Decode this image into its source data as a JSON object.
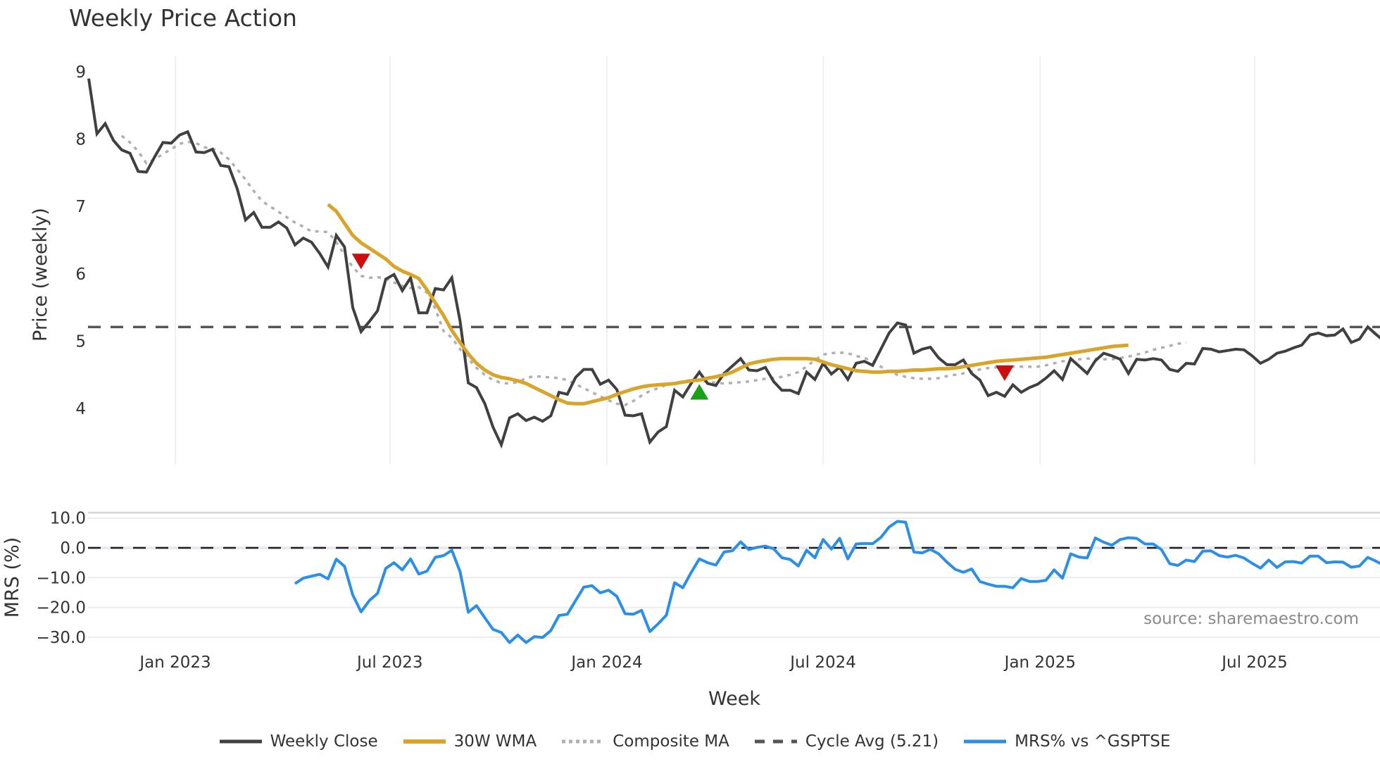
{
  "title": "Weekly Price Action",
  "x_axis_title": "Week",
  "source_label": "source: sharemaestro.com",
  "colors": {
    "close": "#404040",
    "wma": "#d8a42a",
    "composite": "#b0b0b0",
    "cycle": "#555555",
    "mrs": "#2b8fe8",
    "sell_marker": "#cc0e0e",
    "buy_marker": "#17a217",
    "grid": "#ececec"
  },
  "legend": [
    {
      "label": "Weekly Close",
      "key": "close",
      "style": "solid"
    },
    {
      "label": "30W WMA",
      "key": "wma",
      "style": "solid"
    },
    {
      "label": "Composite MA",
      "key": "composite",
      "style": "dotted"
    },
    {
      "label": "Cycle Avg (5.21)",
      "key": "cycle",
      "style": "dashed"
    },
    {
      "label": "MRS% vs ^GSPTSE",
      "key": "mrs",
      "style": "solid"
    }
  ],
  "chart_data": [
    {
      "type": "line",
      "title": "Weekly Price Action",
      "ylabel": "Price (weekly)",
      "xlabel": "Week",
      "ylim": [
        3.3,
        9.25
      ],
      "yticks": [
        4,
        5,
        6,
        7,
        8,
        9
      ],
      "x_tick_labels": [
        "Jan 2023",
        "Jul 2023",
        "Jan 2024",
        "Jul 2024",
        "Jan 2025",
        "Jul 2025"
      ],
      "x_tick_week_index": [
        10.5,
        36.5,
        62.8,
        89,
        115.3,
        141.3
      ],
      "grid": true,
      "cycle_avg": 5.21,
      "series": [
        {
          "name": "Weekly Close",
          "start_week": 0,
          "values": [
            8.9,
            8.08,
            8.23,
            7.98,
            7.84,
            7.79,
            7.52,
            7.51,
            7.74,
            7.95,
            7.94,
            8.06,
            8.11,
            7.81,
            7.8,
            7.85,
            7.61,
            7.59,
            7.26,
            6.8,
            6.91,
            6.69,
            6.69,
            6.77,
            6.68,
            6.43,
            6.53,
            6.47,
            6.3,
            6.1,
            6.57,
            6.4,
            5.5,
            5.14,
            5.29,
            5.45,
            5.92,
            5.99,
            5.75,
            5.94,
            5.42,
            5.42,
            5.78,
            5.76,
            5.94,
            5.3,
            4.38,
            4.31,
            4.07,
            3.72,
            3.46,
            3.86,
            3.92,
            3.82,
            3.87,
            3.81,
            3.89,
            4.24,
            4.21,
            4.46,
            4.58,
            4.58,
            4.36,
            4.42,
            4.28,
            3.9,
            3.89,
            3.92,
            3.5,
            3.65,
            3.73,
            4.27,
            4.17,
            4.37,
            4.54,
            4.37,
            4.34,
            4.52,
            4.63,
            4.74,
            4.57,
            4.56,
            4.61,
            4.4,
            4.27,
            4.27,
            4.22,
            4.54,
            4.43,
            4.67,
            4.51,
            4.61,
            4.43,
            4.67,
            4.7,
            4.64,
            4.88,
            5.12,
            5.27,
            5.24,
            4.82,
            4.88,
            4.91,
            4.75,
            4.65,
            4.65,
            4.72,
            4.52,
            4.42,
            4.19,
            4.24,
            4.18,
            4.35,
            4.24,
            4.31,
            4.36,
            4.45,
            4.56,
            4.43,
            4.74,
            4.63,
            4.52,
            4.71,
            4.82,
            4.78,
            4.73,
            4.52,
            4.73,
            4.72,
            4.74,
            4.72,
            4.58,
            4.55,
            4.67,
            4.66,
            4.89,
            4.88,
            4.84,
            4.86,
            4.88,
            4.87,
            4.78,
            4.67,
            4.73,
            4.82,
            4.85,
            4.9,
            4.94,
            5.09,
            5.12,
            5.08,
            5.09,
            5.18,
            4.98,
            5.03,
            5.21,
            5.1,
            5.0
          ]
        },
        {
          "name": "30W WMA",
          "start_week": 29,
          "values": [
            7.03,
            6.93,
            6.75,
            6.57,
            6.46,
            6.38,
            6.3,
            6.22,
            6.11,
            6.04,
            5.99,
            5.93,
            5.76,
            5.57,
            5.38,
            5.16,
            4.98,
            4.81,
            4.67,
            4.57,
            4.5,
            4.46,
            4.44,
            4.41,
            4.37,
            4.31,
            4.25,
            4.19,
            4.13,
            4.08,
            4.07,
            4.07,
            4.1,
            4.13,
            4.16,
            4.21,
            4.25,
            4.29,
            4.32,
            4.34,
            4.35,
            4.36,
            4.37,
            4.39,
            4.41,
            4.42,
            4.45,
            4.47,
            4.5,
            4.54,
            4.6,
            4.66,
            4.69,
            4.71,
            4.73,
            4.74,
            4.74,
            4.74,
            4.74,
            4.73,
            4.69,
            4.65,
            4.62,
            4.59,
            4.56,
            4.55,
            4.54,
            4.54,
            4.55,
            4.55,
            4.56,
            4.57,
            4.57,
            4.58,
            4.59,
            4.59,
            4.6,
            4.62,
            4.64,
            4.66,
            4.68,
            4.7,
            4.71,
            4.72,
            4.73,
            4.74,
            4.75,
            4.76,
            4.78,
            4.8,
            4.82,
            4.84,
            4.86,
            4.88,
            4.9,
            4.92,
            4.93,
            4.94
          ]
        },
        {
          "name": "Composite MA",
          "start_week": 4,
          "values": [
            8.05,
            7.95,
            7.82,
            7.64,
            7.7,
            7.78,
            7.85,
            7.93,
            7.96,
            7.94,
            7.88,
            7.86,
            7.8,
            7.7,
            7.55,
            7.4,
            7.23,
            7.08,
            7.0,
            6.92,
            6.84,
            6.76,
            6.7,
            6.63,
            6.63,
            6.62,
            6.47,
            6.28,
            6.1,
            5.97,
            5.94,
            5.95,
            5.93,
            5.87,
            5.82,
            5.79,
            5.8,
            5.72,
            5.48,
            5.15,
            5.05,
            4.88,
            4.74,
            4.6,
            4.5,
            4.42,
            4.38,
            4.37,
            4.39,
            4.45,
            4.48,
            4.47,
            4.46,
            4.45,
            4.42,
            4.36,
            4.3,
            4.24,
            4.18,
            4.12,
            4.07,
            4.05,
            4.11,
            4.19,
            4.26,
            4.3,
            4.35,
            4.38,
            4.4,
            4.42,
            4.41,
            4.4,
            4.38,
            4.37,
            4.38,
            4.39,
            4.4,
            4.42,
            4.44,
            4.45,
            4.47,
            4.5,
            4.54,
            4.62,
            4.72,
            4.8,
            4.82,
            4.83,
            4.82,
            4.78,
            4.75,
            4.7,
            4.62,
            4.55,
            4.5,
            4.47,
            4.45,
            4.44,
            4.44,
            4.45,
            4.48,
            4.5,
            4.52,
            4.55,
            4.58,
            4.6,
            4.61,
            4.61,
            4.62,
            4.62,
            4.62,
            4.62,
            4.64,
            4.67,
            4.7,
            4.72,
            4.73,
            4.74,
            4.74,
            4.73,
            4.73,
            4.75,
            4.77,
            4.8,
            4.83,
            4.87,
            4.9,
            4.93,
            4.96,
            4.98
          ]
        },
        {
          "name": "Cycle Avg (5.21)",
          "constant": 5.21
        }
      ],
      "markers": [
        {
          "type": "sell",
          "shape": "triangle-down",
          "week": 33,
          "price": 6.19
        },
        {
          "type": "buy",
          "shape": "triangle-up",
          "week": 74,
          "price": 4.24
        },
        {
          "type": "sell",
          "shape": "triangle-down",
          "week": 111,
          "price": 4.53
        }
      ]
    },
    {
      "type": "line",
      "title": "",
      "ylabel": "MRS (%)",
      "ylim": [
        -32.5,
        11.5
      ],
      "yticks": [
        10,
        0,
        -10,
        -20,
        -30
      ],
      "ytick_labels": [
        "10.0",
        "0.0",
        "−10.0",
        "−20.0",
        "−30.0"
      ],
      "zero_line": 0,
      "series": [
        {
          "name": "MRS% vs ^GSPTSE",
          "start_week": 25,
          "values": [
            -12,
            -10.2,
            -9.5,
            -8.9,
            -10.4,
            -3.8,
            -6.2,
            -15.8,
            -21.5,
            -17.7,
            -15.3,
            -6.9,
            -5,
            -7.4,
            -3.7,
            -8.8,
            -7.8,
            -3.2,
            -2.6,
            -0.8,
            -8,
            -21.6,
            -19.4,
            -23.5,
            -27.4,
            -28.4,
            -31.8,
            -29.3,
            -31.8,
            -29.8,
            -30.1,
            -27.8,
            -22.7,
            -22.3,
            -17.7,
            -13.2,
            -12.7,
            -15.1,
            -14.2,
            -16.3,
            -22.1,
            -22.3,
            -21,
            -28.1,
            -25.5,
            -22.6,
            -11.7,
            -13.4,
            -8.3,
            -3.7,
            -5,
            -5.8,
            -1.4,
            -1,
            2,
            -0.6,
            0.2,
            0.6,
            -0.3,
            -3.3,
            -3.9,
            -6.1,
            -0.8,
            -3.3,
            2.8,
            -0.4,
            3.2,
            -3.7,
            1.3,
            1.5,
            1.4,
            3.5,
            7,
            8.9,
            8.6,
            -1.4,
            -1.7,
            -0.5,
            -2,
            -4.8,
            -7.2,
            -8.2,
            -7.1,
            -11.3,
            -12.2,
            -12.9,
            -12.9,
            -13.4,
            -10.3,
            -11.3,
            -11.3,
            -10.9,
            -7.4,
            -10.2,
            -2,
            -3.1,
            -3.4,
            3.3,
            1.9,
            0.9,
            2.8,
            3.4,
            3.2,
            1.3,
            1.3,
            -0.6,
            -5.3,
            -5.9,
            -4.1,
            -4.6,
            -1.1,
            -1,
            -2.6,
            -3.1,
            -2.5,
            -3.4,
            -5.2,
            -6.8,
            -4.1,
            -6.6,
            -4.7,
            -4.6,
            -5.1,
            -2.8,
            -2.8,
            -5,
            -4.7,
            -4.8,
            -6.5,
            -6.1,
            -3.2,
            -4.5,
            -5.9
          ]
        }
      ]
    }
  ]
}
